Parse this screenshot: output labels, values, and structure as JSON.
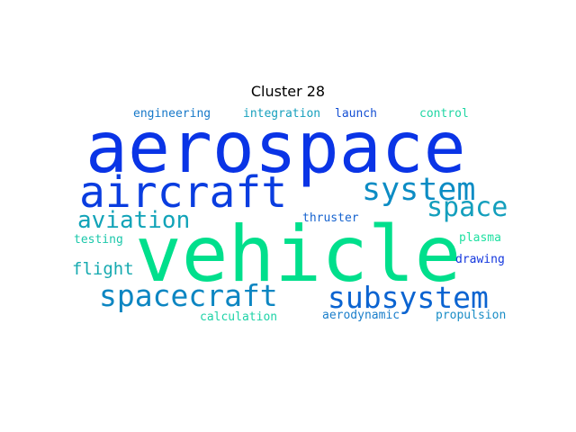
{
  "title": "Cluster 28",
  "colors": {
    "blue": "#0a3be0",
    "royal": "#1d56d8",
    "teal": "#0b8fc0",
    "cyan": "#1599b8",
    "green": "#00e08b",
    "mint": "#1fe0a0"
  },
  "words": [
    {
      "text": "aerospace",
      "color": "#0a34e6"
    },
    {
      "text": "vehicle",
      "color": "#00df8c"
    },
    {
      "text": "aircraft",
      "color": "#0a3de0"
    },
    {
      "text": "system",
      "color": "#0c8cc4"
    },
    {
      "text": "space",
      "color": "#149fbd"
    },
    {
      "text": "aviation",
      "color": "#11a3b8"
    },
    {
      "text": "spacecraft",
      "color": "#0d86c2"
    },
    {
      "text": "subsystem",
      "color": "#0b64d1"
    },
    {
      "text": "flight",
      "color": "#17aab0"
    },
    {
      "text": "engineering",
      "color": "#1779c9"
    },
    {
      "text": "integration",
      "color": "#17a0bd"
    },
    {
      "text": "launch",
      "color": "#1550d4"
    },
    {
      "text": "control",
      "color": "#21d6a4"
    },
    {
      "text": "thruster",
      "color": "#1663cf"
    },
    {
      "text": "testing",
      "color": "#1bc7aa"
    },
    {
      "text": "plasma",
      "color": "#1ee0a1"
    },
    {
      "text": "drawing",
      "color": "#1437de"
    },
    {
      "text": "calculation",
      "color": "#1ed3a7"
    },
    {
      "text": "aerodynamic",
      "color": "#1a7ecb"
    },
    {
      "text": "propulsion",
      "color": "#1a8dc6"
    }
  ]
}
